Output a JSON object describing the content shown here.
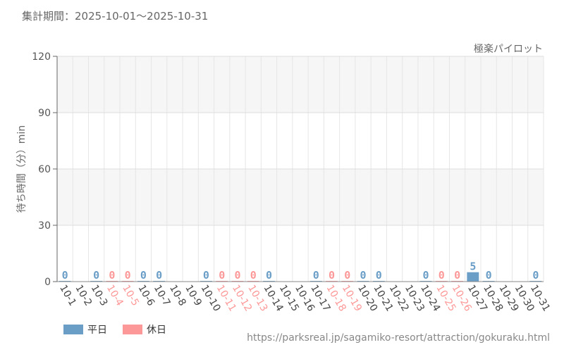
{
  "header": {
    "period": "集計期間：2025-10-01～2025-10-31"
  },
  "footer": {
    "url": "https://parksreal.jp/sagamiko-resort/attraction/gokuraku.html"
  },
  "chart_data": {
    "type": "bar",
    "title": "極楽パイロット",
    "xlabel": "",
    "ylabel": "待ち時間（分）min",
    "ylim": [
      0,
      120
    ],
    "yticks": [
      0,
      30,
      60,
      90,
      120
    ],
    "grid": true,
    "legend_position": "bottom-left",
    "legend": [
      {
        "name": "平日",
        "color": "#6a9ec7"
      },
      {
        "name": "休日",
        "color": "#fd9898"
      }
    ],
    "colors": {
      "weekday": "#6a9ec7",
      "holiday": "#fd9898"
    },
    "categories": [
      "10-1",
      "10-2",
      "10-3",
      "10-4",
      "10-5",
      "10-6",
      "10-7",
      "10-8",
      "10-9",
      "10-10",
      "10-11",
      "10-12",
      "10-13",
      "10-14",
      "10-15",
      "10-16",
      "10-17",
      "10-18",
      "10-19",
      "10-20",
      "10-21",
      "10-22",
      "10-23",
      "10-24",
      "10-25",
      "10-26",
      "10-27",
      "10-28",
      "10-29",
      "10-30",
      "10-31"
    ],
    "day_types": [
      "weekday",
      "weekday",
      "weekday",
      "holiday",
      "holiday",
      "weekday",
      "weekday",
      "weekday",
      "weekday",
      "weekday",
      "holiday",
      "holiday",
      "holiday",
      "weekday",
      "weekday",
      "weekday",
      "weekday",
      "holiday",
      "holiday",
      "weekday",
      "weekday",
      "weekday",
      "weekday",
      "weekday",
      "holiday",
      "holiday",
      "weekday",
      "weekday",
      "weekday",
      "weekday",
      "weekday"
    ],
    "values": [
      0,
      null,
      0,
      0,
      0,
      0,
      0,
      null,
      null,
      0,
      0,
      0,
      0,
      0,
      null,
      null,
      0,
      0,
      0,
      0,
      0,
      null,
      null,
      0,
      0,
      0,
      5,
      0,
      null,
      null,
      0
    ]
  }
}
